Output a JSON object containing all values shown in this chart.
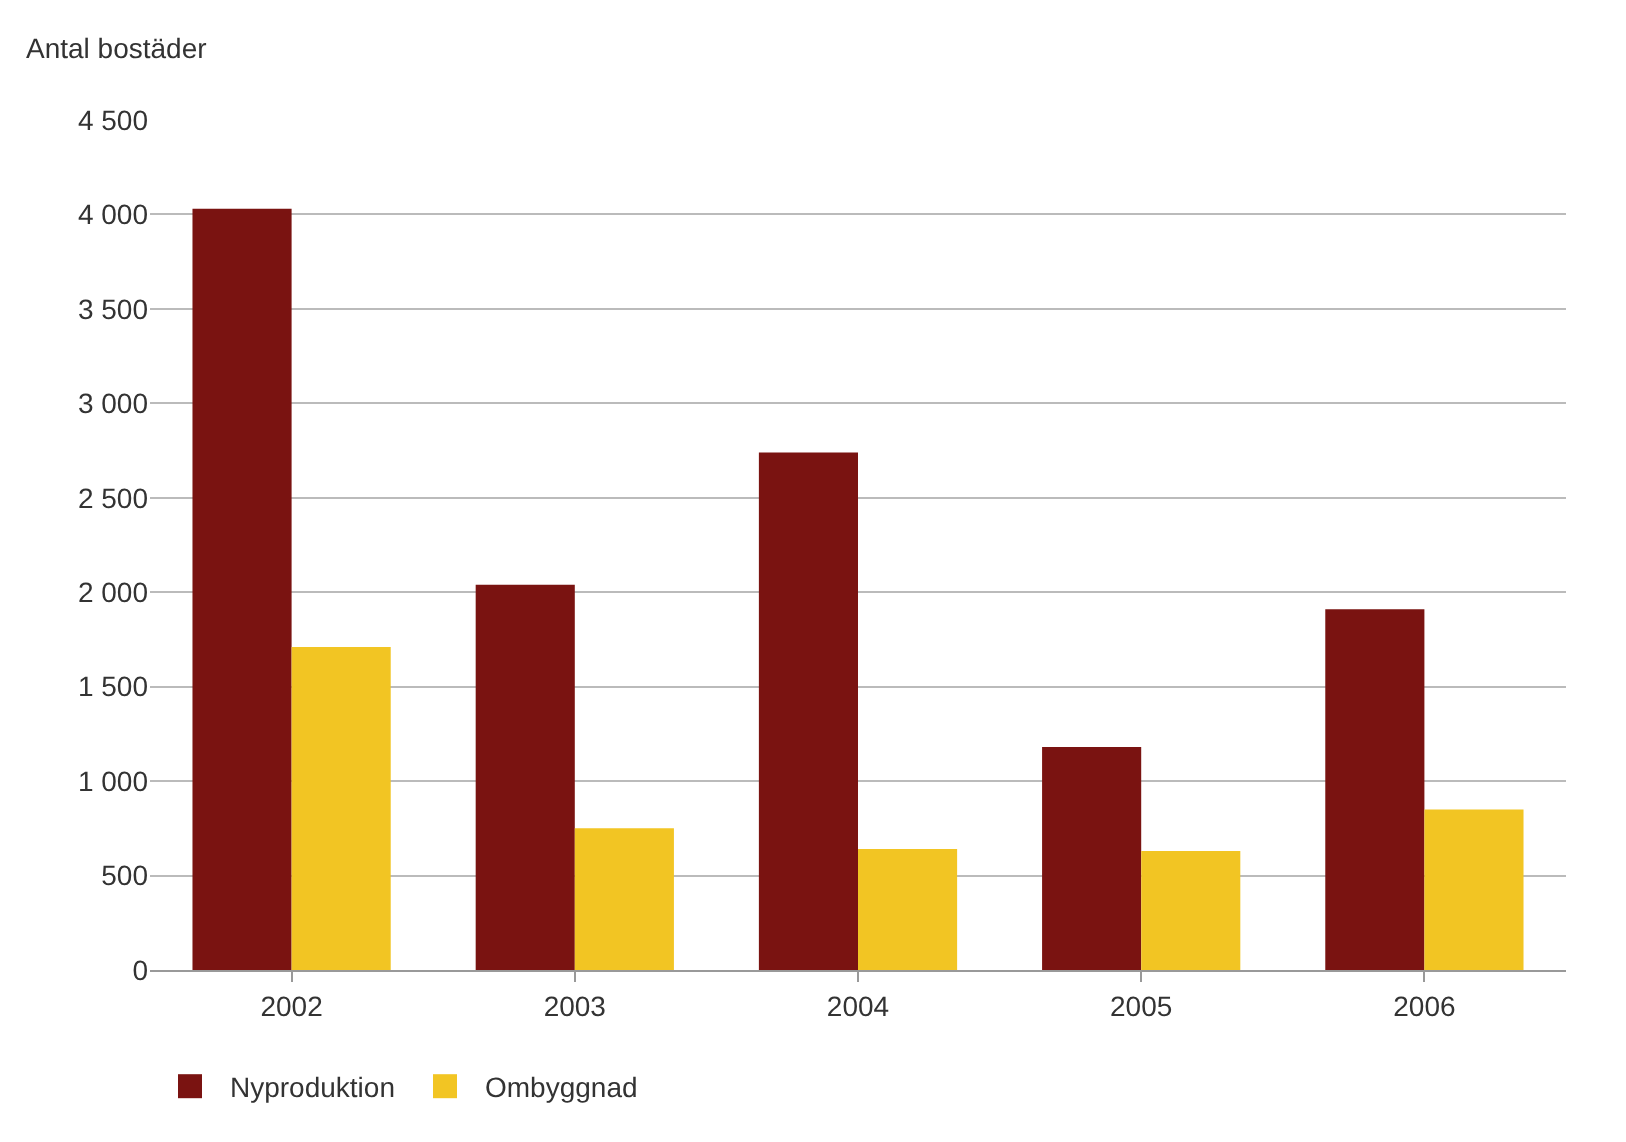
{
  "chart_data": {
    "type": "bar",
    "ylabel": "Antal bostäder",
    "categories": [
      "2002",
      "2003",
      "2004",
      "2005",
      "2006"
    ],
    "series": [
      {
        "name": "Nyproduktion",
        "color": "#7a1311",
        "values": [
          4030,
          2040,
          2740,
          1180,
          1910
        ]
      },
      {
        "name": "Ombyggnad",
        "color": "#f2c523",
        "values": [
          1710,
          750,
          640,
          630,
          850
        ]
      }
    ],
    "ylim": [
      0,
      4500
    ],
    "yticks": [
      {
        "value": 0,
        "label": "0"
      },
      {
        "value": 500,
        "label": "500"
      },
      {
        "value": 1000,
        "label": "1 000"
      },
      {
        "value": 1500,
        "label": "1 500"
      },
      {
        "value": 2000,
        "label": "2 000"
      },
      {
        "value": 2500,
        "label": "2 500"
      },
      {
        "value": 3000,
        "label": "3 000"
      },
      {
        "value": 3500,
        "label": "3 500"
      },
      {
        "value": 4000,
        "label": "4 000"
      },
      {
        "value": 4500,
        "label": "4 500"
      }
    ],
    "grid": "y",
    "legend": "bottom left"
  }
}
